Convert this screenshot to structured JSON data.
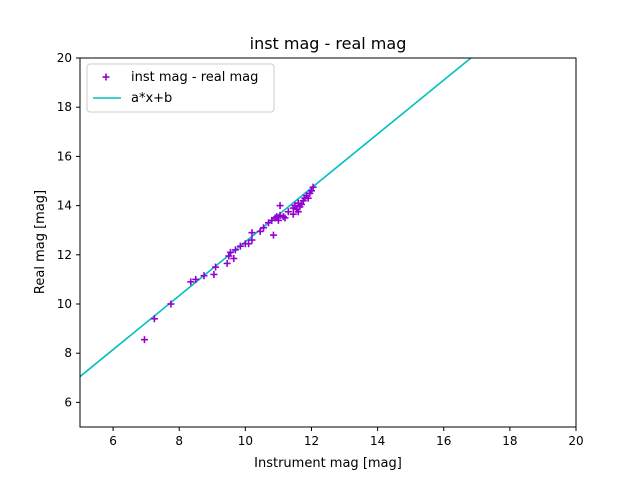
{
  "chart_data": {
    "type": "scatter",
    "title": "inst mag - real mag",
    "xlabel": "Instrument mag [mag]",
    "ylabel": "Real mag [mag]",
    "xlim": [
      5,
      20
    ],
    "ylim": [
      5,
      20
    ],
    "xticks": [
      "6",
      "8",
      "10",
      "12",
      "14",
      "16",
      "18",
      "20"
    ],
    "yticks": [
      "6",
      "8",
      "10",
      "12",
      "14",
      "16",
      "18",
      "20"
    ],
    "grid": false,
    "legend_position": "top-left",
    "series": [
      {
        "name": "inst mag - real mag",
        "kind": "scatter",
        "marker": "plus",
        "color": "#9400d3",
        "points": [
          [
            6.95,
            8.55
          ],
          [
            7.25,
            9.4
          ],
          [
            7.75,
            10.0
          ],
          [
            8.35,
            10.9
          ],
          [
            8.5,
            11.0
          ],
          [
            8.75,
            11.15
          ],
          [
            9.05,
            11.2
          ],
          [
            9.1,
            11.5
          ],
          [
            9.45,
            11.65
          ],
          [
            9.5,
            11.95
          ],
          [
            9.55,
            12.1
          ],
          [
            9.65,
            11.85
          ],
          [
            9.7,
            12.2
          ],
          [
            9.85,
            12.35
          ],
          [
            10.0,
            12.45
          ],
          [
            10.1,
            12.45
          ],
          [
            10.2,
            12.6
          ],
          [
            10.2,
            12.9
          ],
          [
            10.45,
            12.95
          ],
          [
            10.55,
            13.1
          ],
          [
            10.7,
            13.3
          ],
          [
            10.8,
            13.4
          ],
          [
            10.85,
            12.8
          ],
          [
            10.9,
            13.5
          ],
          [
            10.95,
            13.55
          ],
          [
            11.0,
            13.4
          ],
          [
            11.05,
            13.6
          ],
          [
            11.05,
            14.0
          ],
          [
            11.15,
            13.55
          ],
          [
            11.2,
            13.5
          ],
          [
            11.3,
            13.75
          ],
          [
            11.45,
            13.9
          ],
          [
            11.45,
            13.65
          ],
          [
            11.5,
            14.0
          ],
          [
            11.55,
            13.85
          ],
          [
            11.6,
            14.1
          ],
          [
            11.6,
            13.75
          ],
          [
            11.65,
            13.95
          ],
          [
            11.7,
            14.05
          ],
          [
            11.75,
            14.2
          ],
          [
            11.8,
            14.3
          ],
          [
            11.85,
            14.4
          ],
          [
            11.9,
            14.3
          ],
          [
            11.95,
            14.5
          ],
          [
            12.0,
            14.6
          ],
          [
            12.05,
            14.75
          ]
        ]
      },
      {
        "name": "a*x+b",
        "kind": "line",
        "color": "#00bfbf",
        "x": [
          5,
          16.82
        ],
        "y": [
          7.05,
          20.0
        ]
      }
    ]
  }
}
